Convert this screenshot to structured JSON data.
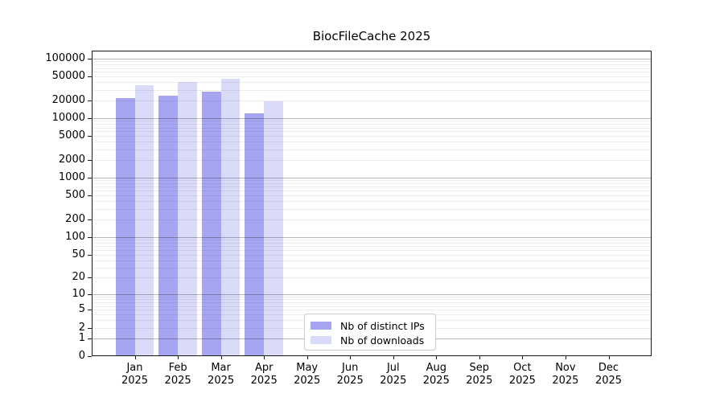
{
  "title": "BiocFileCache 2025",
  "chart_data": {
    "type": "bar",
    "title": "BiocFileCache 2025",
    "categories": [
      "Jan",
      "Feb",
      "Mar",
      "Apr",
      "May",
      "Jun",
      "Jul",
      "Aug",
      "Sep",
      "Oct",
      "Nov",
      "Dec"
    ],
    "category_year": "2025",
    "series": [
      {
        "name": "Nb of distinct IPs",
        "color": "#a5a5f1",
        "values": [
          22000,
          24000,
          28000,
          12000,
          null,
          null,
          null,
          null,
          null,
          null,
          null,
          null
        ]
      },
      {
        "name": "Nb of downloads",
        "color": "#dadaf9",
        "values": [
          36000,
          40000,
          46000,
          19000,
          null,
          null,
          null,
          null,
          null,
          null,
          null,
          null
        ]
      }
    ],
    "xlabel": "",
    "ylabel": "",
    "y_scale": "log10(value+1)",
    "y_ticks": [
      0,
      1,
      2,
      5,
      10,
      20,
      50,
      100,
      200,
      500,
      1000,
      2000,
      5000,
      10000,
      20000,
      50000,
      100000
    ],
    "ylim": [
      0,
      100000
    ],
    "grid": "horizontal major and minor gridlines, drawn above bars",
    "legend_position": "inside lower center-left"
  }
}
